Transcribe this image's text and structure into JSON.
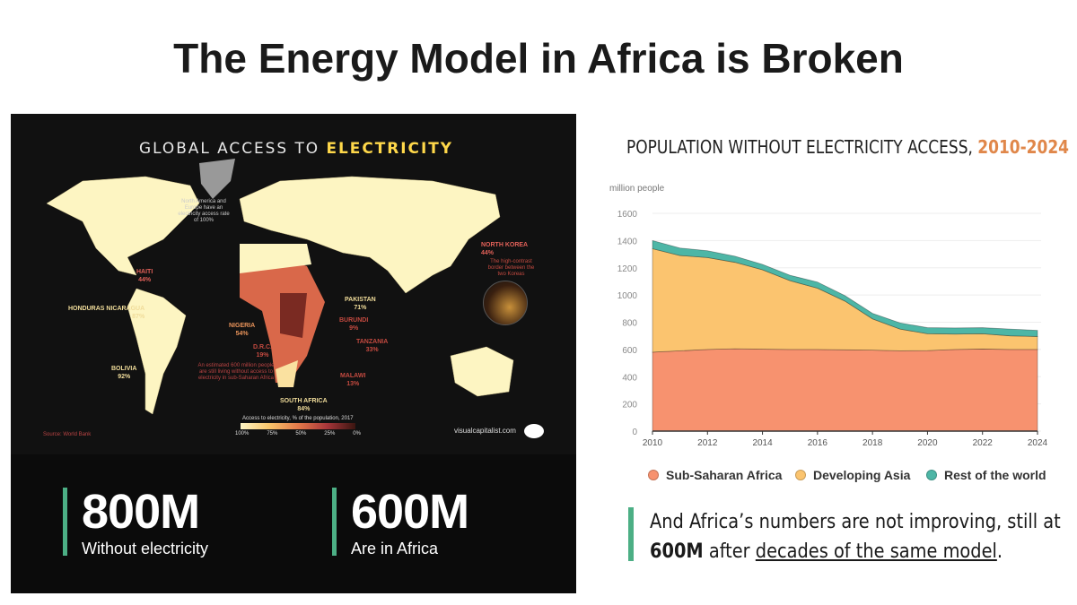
{
  "title": "The Energy Model in Africa is Broken",
  "map": {
    "title_a": "GLOBAL ACCESS TO ",
    "title_b": "ELECTRICITY",
    "note_na": "North America and Europe have an electricity access rate of 100%",
    "note_africa": "An estimated 600 million people are still living without access to electricity in sub-Saharan Africa",
    "note_korea": "The high-contrast border between the two Koreas",
    "labels": [
      {
        "name": "HAITI",
        "value": "44%"
      },
      {
        "name": "HONDURAS NICARAGUA",
        "value": "87%"
      },
      {
        "name": "BOLIVIA",
        "value": "92%"
      },
      {
        "name": "NIGERIA",
        "value": "54%"
      },
      {
        "name": "D.R.C.",
        "value": "19%"
      },
      {
        "name": "SOUTH AFRICA",
        "value": "84%"
      },
      {
        "name": "PAKISTAN",
        "value": "71%"
      },
      {
        "name": "BURUNDI",
        "value": "9%"
      },
      {
        "name": "TANZANIA",
        "value": "33%"
      },
      {
        "name": "MALAWI",
        "value": "13%"
      },
      {
        "name": "NORTH KOREA",
        "value": "44%"
      }
    ],
    "scale_title": "Access to electricity, % of the population, 2017",
    "scale_ticks": [
      "100%",
      "75%",
      "50%",
      "25%",
      "0%"
    ],
    "source": "Source: World Bank",
    "brand": "visualcapitalist.com"
  },
  "stats": [
    {
      "value": "800M",
      "label": "Without electricity"
    },
    {
      "value": "600M",
      "label": "Are in Africa"
    }
  ],
  "chart_data": {
    "type": "area",
    "stacked": true,
    "title": "POPULATION WITHOUT ELECTRICITY ACCESS, ",
    "title_highlight": "2010-2024",
    "ylabel": "million people",
    "ylim": [
      0,
      1600
    ],
    "yticks": [
      "0",
      "200",
      "400",
      "600",
      "800",
      "1000",
      "1200",
      "1400",
      "1600"
    ],
    "xticks": [
      "2010",
      "2012",
      "2014",
      "2016",
      "2018",
      "2020",
      "2022",
      "2024"
    ],
    "x": [
      2010,
      2011,
      2012,
      2013,
      2014,
      2015,
      2016,
      2017,
      2018,
      2019,
      2020,
      2021,
      2022,
      2023,
      2024
    ],
    "series": [
      {
        "name": "Sub-Saharan Africa",
        "color": "#f7926f",
        "values": [
          580,
          590,
          600,
          605,
          602,
          600,
          600,
          597,
          595,
          590,
          592,
          600,
          603,
          600,
          600
        ]
      },
      {
        "name": "Developing Asia",
        "color": "#fbc46f",
        "values": [
          760,
          700,
          675,
          635,
          583,
          505,
          450,
          358,
          230,
          160,
          123,
          113,
          112,
          100,
          95
        ]
      },
      {
        "name": "Rest of the world",
        "color": "#4db6a6",
        "values": [
          60,
          55,
          50,
          45,
          40,
          40,
          45,
          40,
          40,
          45,
          45,
          45,
          45,
          50,
          45
        ]
      }
    ],
    "grid": true,
    "legend": "bottom"
  },
  "quote": {
    "a": "And Africa’s numbers are not improving, still at ",
    "b": "600M",
    "c": " after ",
    "d": "decades of the same model",
    "e": "."
  }
}
